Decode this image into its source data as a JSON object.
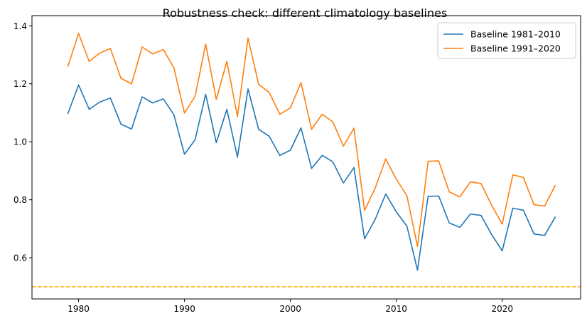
{
  "chart_data": {
    "type": "line",
    "title": "Robustness check: different climatology baselines",
    "xlabel": "",
    "ylabel": "",
    "xlim": [
      1975.6,
      2027.4
    ],
    "ylim": [
      0.458,
      1.435
    ],
    "xticks": [
      1980,
      1990,
      2000,
      2010,
      2020
    ],
    "yticks": [
      0.6,
      0.8,
      1.0,
      1.2,
      1.4
    ],
    "grid": false,
    "legend_position": "top-right",
    "reference_line": {
      "orientation": "horizontal",
      "y": 0.5,
      "style": "dashed",
      "color": "#ffb000"
    },
    "x": [
      1979,
      1980,
      1981,
      1982,
      1983,
      1984,
      1985,
      1986,
      1987,
      1988,
      1989,
      1990,
      1991,
      1992,
      1993,
      1994,
      1995,
      1996,
      1997,
      1998,
      1999,
      2000,
      2001,
      2002,
      2003,
      2004,
      2005,
      2006,
      2007,
      2008,
      2009,
      2010,
      2011,
      2012,
      2013,
      2014,
      2015,
      2016,
      2017,
      2018,
      2019,
      2020,
      2021,
      2022,
      2023,
      2024,
      2025
    ],
    "series": [
      {
        "name": "Baseline 1981–2010",
        "color": "#1f77b4",
        "values": [
          1.098,
          1.196,
          1.112,
          1.137,
          1.151,
          1.061,
          1.044,
          1.155,
          1.134,
          1.148,
          1.093,
          0.957,
          1.007,
          1.164,
          0.997,
          1.112,
          0.947,
          1.182,
          1.043,
          1.019,
          0.953,
          0.971,
          1.048,
          0.908,
          0.953,
          0.931,
          0.858,
          0.911,
          0.665,
          0.732,
          0.82,
          0.758,
          0.709,
          0.557,
          0.812,
          0.813,
          0.72,
          0.705,
          0.751,
          0.746,
          0.68,
          0.624,
          0.771,
          0.764,
          0.682,
          0.677,
          0.74
        ]
      },
      {
        "name": "Baseline 1991–2020",
        "color": "#ff7f0e",
        "values": [
          1.261,
          1.374,
          1.277,
          1.306,
          1.322,
          1.219,
          1.2,
          1.327,
          1.303,
          1.318,
          1.255,
          1.099,
          1.157,
          1.337,
          1.146,
          1.277,
          1.087,
          1.358,
          1.198,
          1.17,
          1.095,
          1.117,
          1.204,
          1.043,
          1.095,
          1.069,
          0.985,
          1.047,
          0.763,
          0.84,
          0.941,
          0.871,
          0.814,
          0.639,
          0.933,
          0.934,
          0.827,
          0.81,
          0.862,
          0.856,
          0.781,
          0.716,
          0.886,
          0.877,
          0.783,
          0.778,
          0.849
        ]
      }
    ]
  }
}
